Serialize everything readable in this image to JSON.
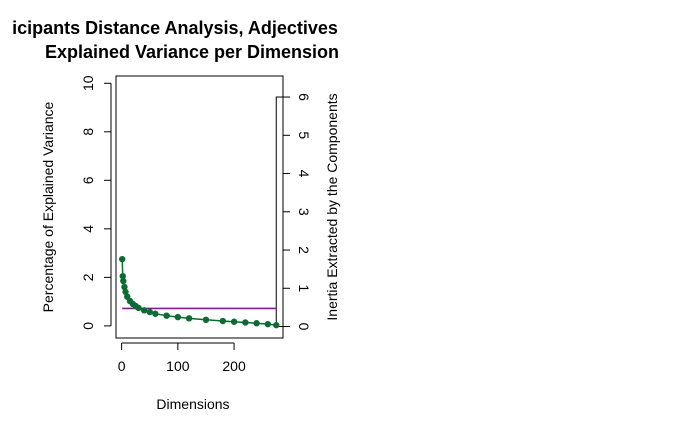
{
  "chart_data": {
    "type": "scatter",
    "title_line1": "icipants Distance Analysis, Adjectives",
    "title_line2": "Explained Variance per Dimension",
    "xlabel": "Dimensions",
    "ylabel_left": "Percentage of Explained Variance",
    "ylabel_right": "Inertia Extracted by the Components",
    "xlim": [
      -10,
      287
    ],
    "ylim_left": [
      -0.5,
      10.3
    ],
    "ylim_right": [
      -0.3,
      6.55
    ],
    "x_ticks": [
      0,
      100,
      200
    ],
    "x_tick_labels": [
      "0",
      "100",
      "200"
    ],
    "y_left_ticks": [
      0,
      2,
      4,
      6,
      8,
      10
    ],
    "y_left_tick_labels": [
      "0",
      "2",
      "4",
      "6",
      "8",
      "10"
    ],
    "y_right_ticks": [
      0,
      1,
      2,
      3,
      4,
      5,
      6
    ],
    "y_right_tick_labels": [
      "0",
      "1",
      "2",
      "3",
      "4",
      "5",
      "6"
    ],
    "inertia_bar": {
      "x_start": 275,
      "value": 6.0
    },
    "reference_line": {
      "y": 0.72,
      "x_start": 1,
      "x_end": 275,
      "color": "#7a1f8c"
    },
    "series": [
      {
        "color": "#0b6b30",
        "x": [
          1,
          2,
          3,
          5,
          7,
          10,
          15,
          20,
          25,
          30,
          40,
          50,
          60,
          80,
          100,
          120,
          150,
          180,
          200,
          220,
          240,
          260,
          275
        ],
        "values": [
          2.75,
          2.05,
          1.85,
          1.6,
          1.4,
          1.2,
          1.02,
          0.9,
          0.82,
          0.74,
          0.64,
          0.57,
          0.5,
          0.42,
          0.36,
          0.31,
          0.25,
          0.2,
          0.17,
          0.14,
          0.11,
          0.07,
          0.03
        ]
      }
    ]
  }
}
